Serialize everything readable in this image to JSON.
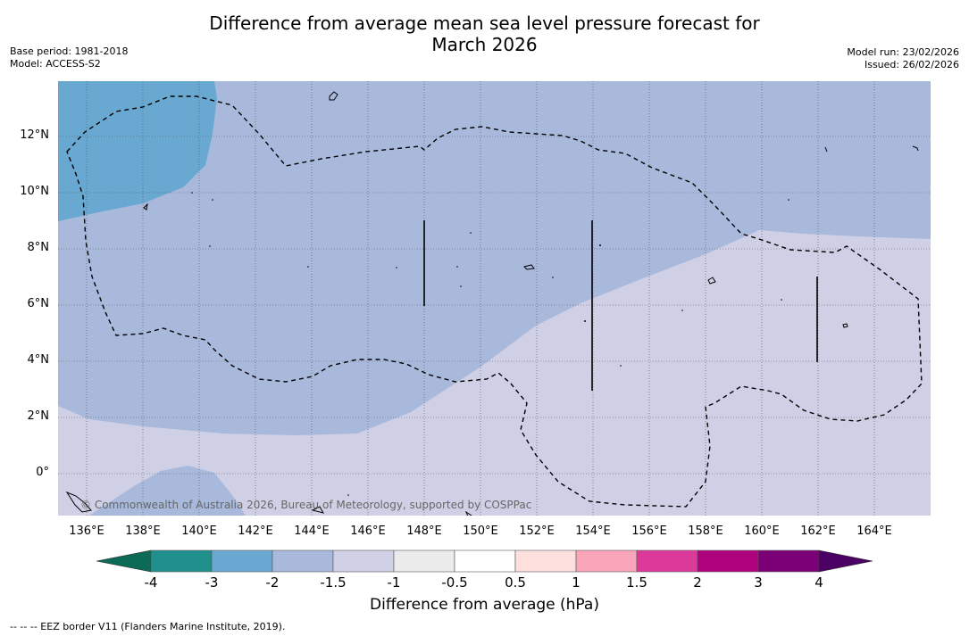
{
  "title": "Difference from average mean sea level pressure forecast for\nMarch 2026",
  "title_line1": "Difference from average mean sea level pressure forecast for",
  "title_line2": "March 2026",
  "base_period": "Base period: 1981-2018",
  "model": "Model: ACCESS-S2",
  "model_run": "Model run: 23/02/2026",
  "issued": "Issued: 26/02/2026",
  "copyright": "© Commonwealth of Australia 2026, Bureau of Meteorology, supported by COSPPac",
  "footnote": "-- -- -- EEZ border V11 (Flanders Marine Institute, 2019).",
  "x_ticks": [
    "136°E",
    "138°E",
    "140°E",
    "142°E",
    "144°E",
    "146°E",
    "148°E",
    "150°E",
    "152°E",
    "154°E",
    "156°E",
    "158°E",
    "160°E",
    "162°E",
    "164°E"
  ],
  "y_ticks": [
    "12°N",
    "10°N",
    "8°N",
    "6°N",
    "4°N",
    "2°N",
    "0°"
  ],
  "colorbar": {
    "title": "Difference from average (hPa)",
    "labels": [
      "-4",
      "-3",
      "-2",
      "-1.5",
      "-1",
      "-0.5",
      "0.5",
      "1",
      "1.5",
      "2",
      "3",
      "4"
    ],
    "colors": [
      "#20908f",
      "#69a8d0",
      "#a8b9dc",
      "#cfd0e6",
      "#ebebeb",
      "#ffffff",
      "#fde0de",
      "#f9a4b8",
      "#dc3a9b",
      "#ae017e",
      "#7b0077"
    ],
    "under_color": "#0c6b57",
    "over_color": "#4b0064"
  },
  "colors": {
    "zone_minus3": "#69a8d0",
    "zone_minus2": "#a8b9dc",
    "zone_minus15": "#cfd0e6"
  }
}
